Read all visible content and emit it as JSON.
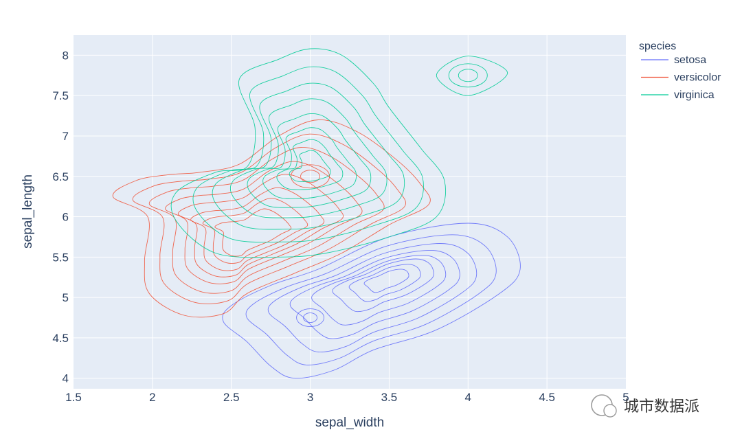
{
  "chart_data": {
    "type": "contour",
    "xlabel": "sepal_width",
    "ylabel": "sepal_length",
    "xlim": [
      1.5,
      5
    ],
    "ylim": [
      3.87,
      8.25
    ],
    "x_ticks": [
      "1.5",
      "2",
      "2.5",
      "3",
      "3.5",
      "4",
      "4.5",
      "5"
    ],
    "y_ticks": [
      "4",
      "4.5",
      "5",
      "5.5",
      "6",
      "6.5",
      "7",
      "7.5",
      "8"
    ],
    "legend": {
      "title": "species",
      "position": "top-right outside"
    },
    "grid": true,
    "plot_background": "#E5ECF6",
    "series": [
      {
        "name": "setosa",
        "color": "#636EFA",
        "peaks": [
          {
            "x": 3.5,
            "y": 5.25
          },
          {
            "x": 3.0,
            "y": 4.75
          }
        ],
        "outer_contour": [
          [
            2.9,
            4.0
          ],
          [
            3.15,
            4.1
          ],
          [
            3.4,
            4.35
          ],
          [
            3.8,
            4.6
          ],
          [
            4.2,
            5.05
          ],
          [
            4.33,
            5.35
          ],
          [
            4.25,
            5.75
          ],
          [
            4.0,
            5.92
          ],
          [
            3.5,
            5.75
          ],
          [
            3.05,
            5.35
          ],
          [
            2.75,
            5.15
          ],
          [
            2.5,
            4.9
          ],
          [
            2.45,
            4.7
          ],
          [
            2.6,
            4.45
          ],
          [
            2.75,
            4.15
          ]
        ]
      },
      {
        "name": "versicolor",
        "color": "#EF553B",
        "peaks": [
          {
            "x": 2.6,
            "y": 5.75
          },
          {
            "x": 3.0,
            "y": 6.5
          }
        ],
        "outer_contour": [
          [
            1.75,
            6.25
          ],
          [
            1.9,
            6.45
          ],
          [
            2.1,
            6.52
          ],
          [
            2.3,
            6.55
          ],
          [
            2.55,
            6.65
          ],
          [
            2.8,
            7.0
          ],
          [
            3.05,
            7.2
          ],
          [
            3.3,
            7.05
          ],
          [
            3.55,
            6.7
          ],
          [
            3.7,
            6.4
          ],
          [
            3.75,
            6.15
          ],
          [
            3.5,
            5.9
          ],
          [
            3.2,
            5.55
          ],
          [
            2.9,
            5.3
          ],
          [
            2.6,
            5.05
          ],
          [
            2.45,
            4.8
          ],
          [
            2.2,
            4.78
          ],
          [
            1.98,
            5.05
          ],
          [
            1.95,
            5.45
          ],
          [
            1.97,
            6.0
          ]
        ]
      },
      {
        "name": "virginica",
        "color": "#00CC96",
        "peaks": [
          {
            "x": 3.0,
            "y": 6.6
          },
          {
            "x": 4.0,
            "y": 7.75
          }
        ],
        "outer_contour": [
          [
            2.15,
            6.3
          ],
          [
            2.4,
            6.55
          ],
          [
            2.6,
            6.62
          ],
          [
            2.65,
            7.1
          ],
          [
            2.55,
            7.7
          ],
          [
            2.8,
            7.95
          ],
          [
            3.0,
            8.08
          ],
          [
            3.2,
            8.0
          ],
          [
            3.4,
            7.65
          ],
          [
            3.5,
            7.35
          ],
          [
            3.7,
            6.85
          ],
          [
            3.85,
            6.45
          ],
          [
            3.8,
            6.0
          ],
          [
            3.5,
            5.75
          ],
          [
            3.1,
            5.55
          ],
          [
            2.8,
            5.5
          ],
          [
            2.4,
            5.55
          ],
          [
            2.15,
            5.95
          ]
        ],
        "secondary_contour": [
          [
            3.8,
            7.75
          ],
          [
            4.0,
            7.99
          ],
          [
            4.25,
            7.78
          ],
          [
            4.0,
            7.5
          ]
        ]
      }
    ]
  },
  "watermark": {
    "text": "城市数据派"
  },
  "colors": {
    "grid": "#ffffff",
    "tick_text": "#2a3f5f",
    "plot_bg": "#E5ECF6"
  }
}
